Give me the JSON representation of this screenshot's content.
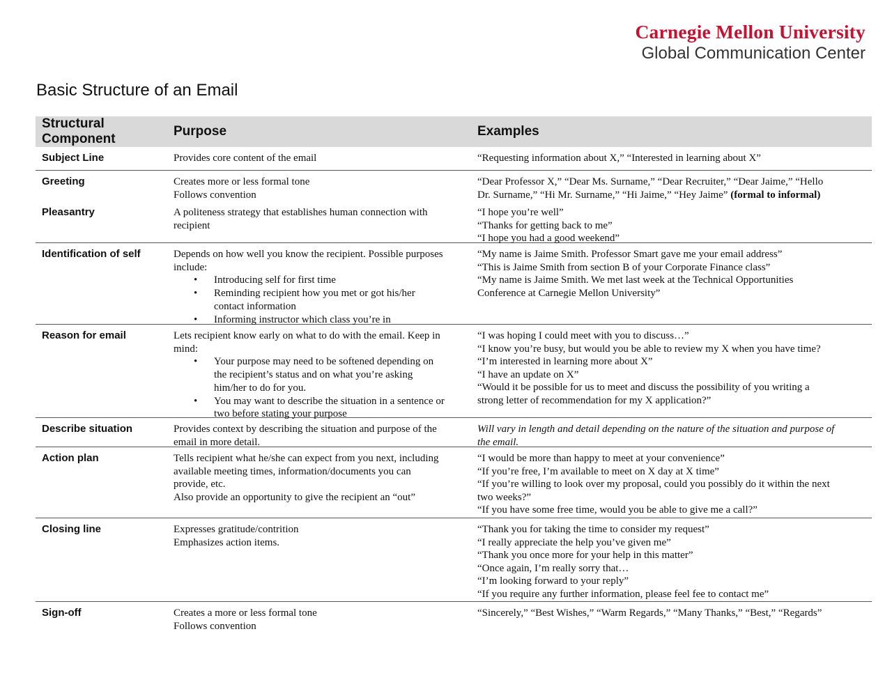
{
  "logo": {
    "university": "Carnegie Mellon University",
    "center": "Global Communication Center",
    "brand_color": "#c41230"
  },
  "title": "Basic Structure of an Email",
  "table": {
    "headers": {
      "component": [
        "Structural",
        "Component"
      ],
      "purpose": "Purpose",
      "examples": "Examples"
    },
    "rows": [
      {
        "component": "Subject Line",
        "purpose": [
          "Provides core content of the email"
        ],
        "examples": [
          "“Requesting information about X,” “Interested in learning about X”"
        ]
      },
      {
        "component": "Greeting",
        "purpose": [
          "Creates more or less formal tone",
          "Follows convention"
        ],
        "examples": [
          "“Dear Professor X,” “Dear Ms. Surname,” “Dear Recruiter,” “Dear Jaime,” “Hello",
          {
            "text": "Dr. Surname,” “Hi Mr. Surname,” “Hi Jaime,” “Hey Jaime” ",
            "bold": "(formal to informal)"
          }
        ]
      },
      {
        "component": "Pleasantry",
        "purpose": [
          "A politeness strategy that establishes human connection with",
          "recipient"
        ],
        "examples": [
          " “I hope you’re well”",
          "“Thanks for getting back to me”",
          "“I hope you had a good weekend”"
        ]
      },
      {
        "component": "Identification of self",
        "purpose": [
          "Depends on how well you know the recipient. Possible purposes",
          "include:",
          {
            "bullet": [
              "Introducing self for first time"
            ]
          },
          {
            "bullet": [
              "Reminding recipient how you met or got his/her",
              "contact information"
            ]
          },
          {
            "bullet": [
              "Informing instructor which class you’re in"
            ]
          }
        ],
        "examples": [
          "“My name is Jaime Smith. Professor Smart gave me your email address”",
          "“This is Jaime Smith from section B of your Corporate Finance class”",
          "“My name is Jaime Smith. We met last week at the Technical Opportunities",
          "Conference at Carnegie Mellon University”"
        ]
      },
      {
        "component": "Reason for email",
        "purpose": [
          "Lets recipient know early on what to do with the email. Keep in",
          "mind:",
          {
            "bullet": [
              "Your purpose may need to be softened depending on",
              "the recipient’s status and on what you’re asking",
              "him/her to do for you."
            ]
          },
          {
            "bullet": [
              "You may want to describe the situation in a sentence or",
              "two before stating your purpose"
            ]
          }
        ],
        "examples": [
          "“I was hoping I could meet with you to discuss…”",
          "“I know you’re busy, but would you be able to review my X when you have time?",
          "“I’m interested in learning more about X”",
          "“I have an update on X”",
          "“Would it be possible for us to meet and discuss the possibility of you writing a",
          "strong letter of recommendation for my X application?”"
        ]
      },
      {
        "component": "Describe situation",
        "purpose": [
          "Provides context by describing the situation and purpose of the",
          "email in more detail."
        ],
        "examples": [
          {
            "italic": "Will vary in length and detail depending on the nature of the situation and purpose of"
          },
          {
            "italic": "the email."
          }
        ]
      },
      {
        "component": "Action plan",
        "purpose": [
          "Tells recipient what he/she can expect from you next, including",
          "available meeting times, information/documents you can",
          "provide, etc.",
          "Also provide an opportunity to give the recipient an “out”"
        ],
        "examples": [
          "“I would be more than happy to meet at your convenience”",
          "“If you’re free, I’m available to meet on X day at X time”",
          "“If you’re willing to look over my proposal, could you possibly do it within the next",
          "two weeks?”",
          "“If you have some free time, would you be able to give me a call?”"
        ]
      },
      {
        "component": "Closing line",
        "purpose": [
          "Expresses gratitude/contrition",
          "Emphasizes action items."
        ],
        "examples": [
          "“Thank you for taking the time to consider my request”",
          "“I really appreciate the help you’ve given me”",
          "“Thank you once more for your help in this matter”",
          "“Once again, I’m really sorry that…",
          "“I’m looking forward to your reply”",
          "“If you require any further information, please feel fee to contact me”"
        ]
      },
      {
        "component": "Sign-off",
        "purpose": [
          "Creates a more or less formal tone",
          "Follows convention"
        ],
        "examples": [
          "“Sincerely,” “Best Wishes,” “Warm Regards,” “Many Thanks,” “Best,” “Regards”"
        ]
      }
    ]
  }
}
